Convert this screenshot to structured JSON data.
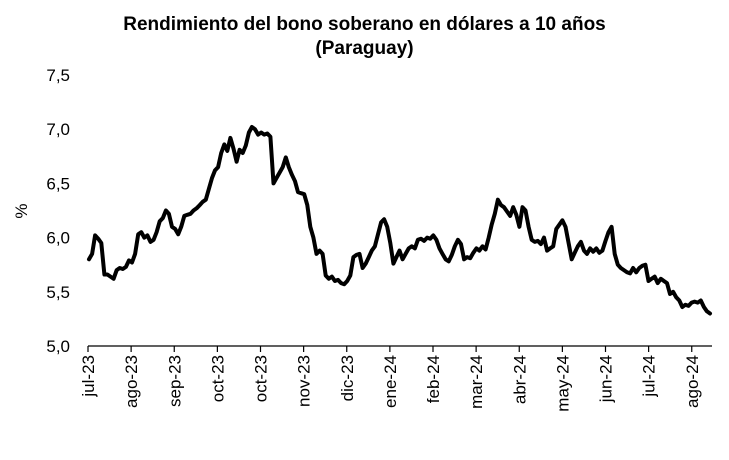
{
  "chart_data": {
    "type": "line",
    "title": "Rendimiento del bono soberano en dólares a 10 años",
    "subtitle": "(Paraguay)",
    "ylabel": "%",
    "xlabel": "",
    "ylim": [
      5.0,
      7.5
    ],
    "yticks": [
      "5,0",
      "5,5",
      "6,0",
      "6,5",
      "7,0",
      "7,5"
    ],
    "xtick_labels": [
      "jul-23",
      "ago-23",
      "sep-23",
      "oct-23",
      "oct-23",
      "nov-23",
      "dic-23",
      "ene-24",
      "feb-24",
      "mar-24",
      "abr-24",
      "may-24",
      "jun-24",
      "jul-24",
      "ago-24"
    ],
    "grid": false,
    "line_color": "#000000",
    "series": [
      {
        "values": [
          5.8,
          5.85,
          6.02,
          5.99,
          5.95,
          5.66,
          5.66,
          5.64,
          5.62,
          5.7,
          5.72,
          5.71,
          5.73,
          5.79,
          5.77,
          5.85,
          6.03,
          6.05,
          6.0,
          6.02,
          5.96,
          5.98,
          6.05,
          6.15,
          6.18,
          6.25,
          6.22,
          6.1,
          6.08,
          6.03,
          6.1,
          6.2,
          6.21,
          6.22,
          6.25,
          6.27,
          6.3,
          6.33,
          6.35,
          6.45,
          6.55,
          6.62,
          6.65,
          6.78,
          6.86,
          6.8,
          6.92,
          6.82,
          6.7,
          6.81,
          6.78,
          6.85,
          6.97,
          7.02,
          7.0,
          6.95,
          6.97,
          6.95,
          6.96,
          6.93,
          6.5,
          6.55,
          6.6,
          6.65,
          6.74,
          6.65,
          6.58,
          6.52,
          6.42,
          6.41,
          6.4,
          6.3,
          6.1,
          6.0,
          5.85,
          5.88,
          5.85,
          5.65,
          5.62,
          5.64,
          5.6,
          5.61,
          5.58,
          5.57,
          5.6,
          5.65,
          5.82,
          5.84,
          5.85,
          5.72,
          5.76,
          5.82,
          5.88,
          5.92,
          6.03,
          6.14,
          6.17,
          6.1,
          5.95,
          5.76,
          5.82,
          5.88,
          5.8,
          5.85,
          5.9,
          5.92,
          5.9,
          5.98,
          5.99,
          5.97,
          6.0,
          5.99,
          6.02,
          5.98,
          5.9,
          5.85,
          5.8,
          5.78,
          5.84,
          5.92,
          5.98,
          5.94,
          5.8,
          5.82,
          5.81,
          5.86,
          5.9,
          5.88,
          5.92,
          5.89,
          6.0,
          6.12,
          6.22,
          6.35,
          6.3,
          6.28,
          6.24,
          6.2,
          6.28,
          6.21,
          6.1,
          6.28,
          6.25,
          6.1,
          5.98,
          5.96,
          5.97,
          5.94,
          6.0,
          5.88,
          5.9,
          5.92,
          6.08,
          6.12,
          6.16,
          6.1,
          5.95,
          5.8,
          5.86,
          5.92,
          5.96,
          5.88,
          5.85,
          5.9,
          5.87,
          5.9,
          5.86,
          5.88,
          5.97,
          6.05,
          6.1,
          5.85,
          5.75,
          5.72,
          5.7,
          5.68,
          5.67,
          5.72,
          5.68,
          5.72,
          5.74,
          5.75,
          5.6,
          5.62,
          5.64,
          5.58,
          5.62,
          5.6,
          5.58,
          5.48,
          5.5,
          5.45,
          5.42,
          5.36,
          5.38,
          5.37,
          5.4,
          5.41,
          5.4,
          5.42,
          5.36,
          5.32,
          5.3
        ]
      }
    ]
  }
}
